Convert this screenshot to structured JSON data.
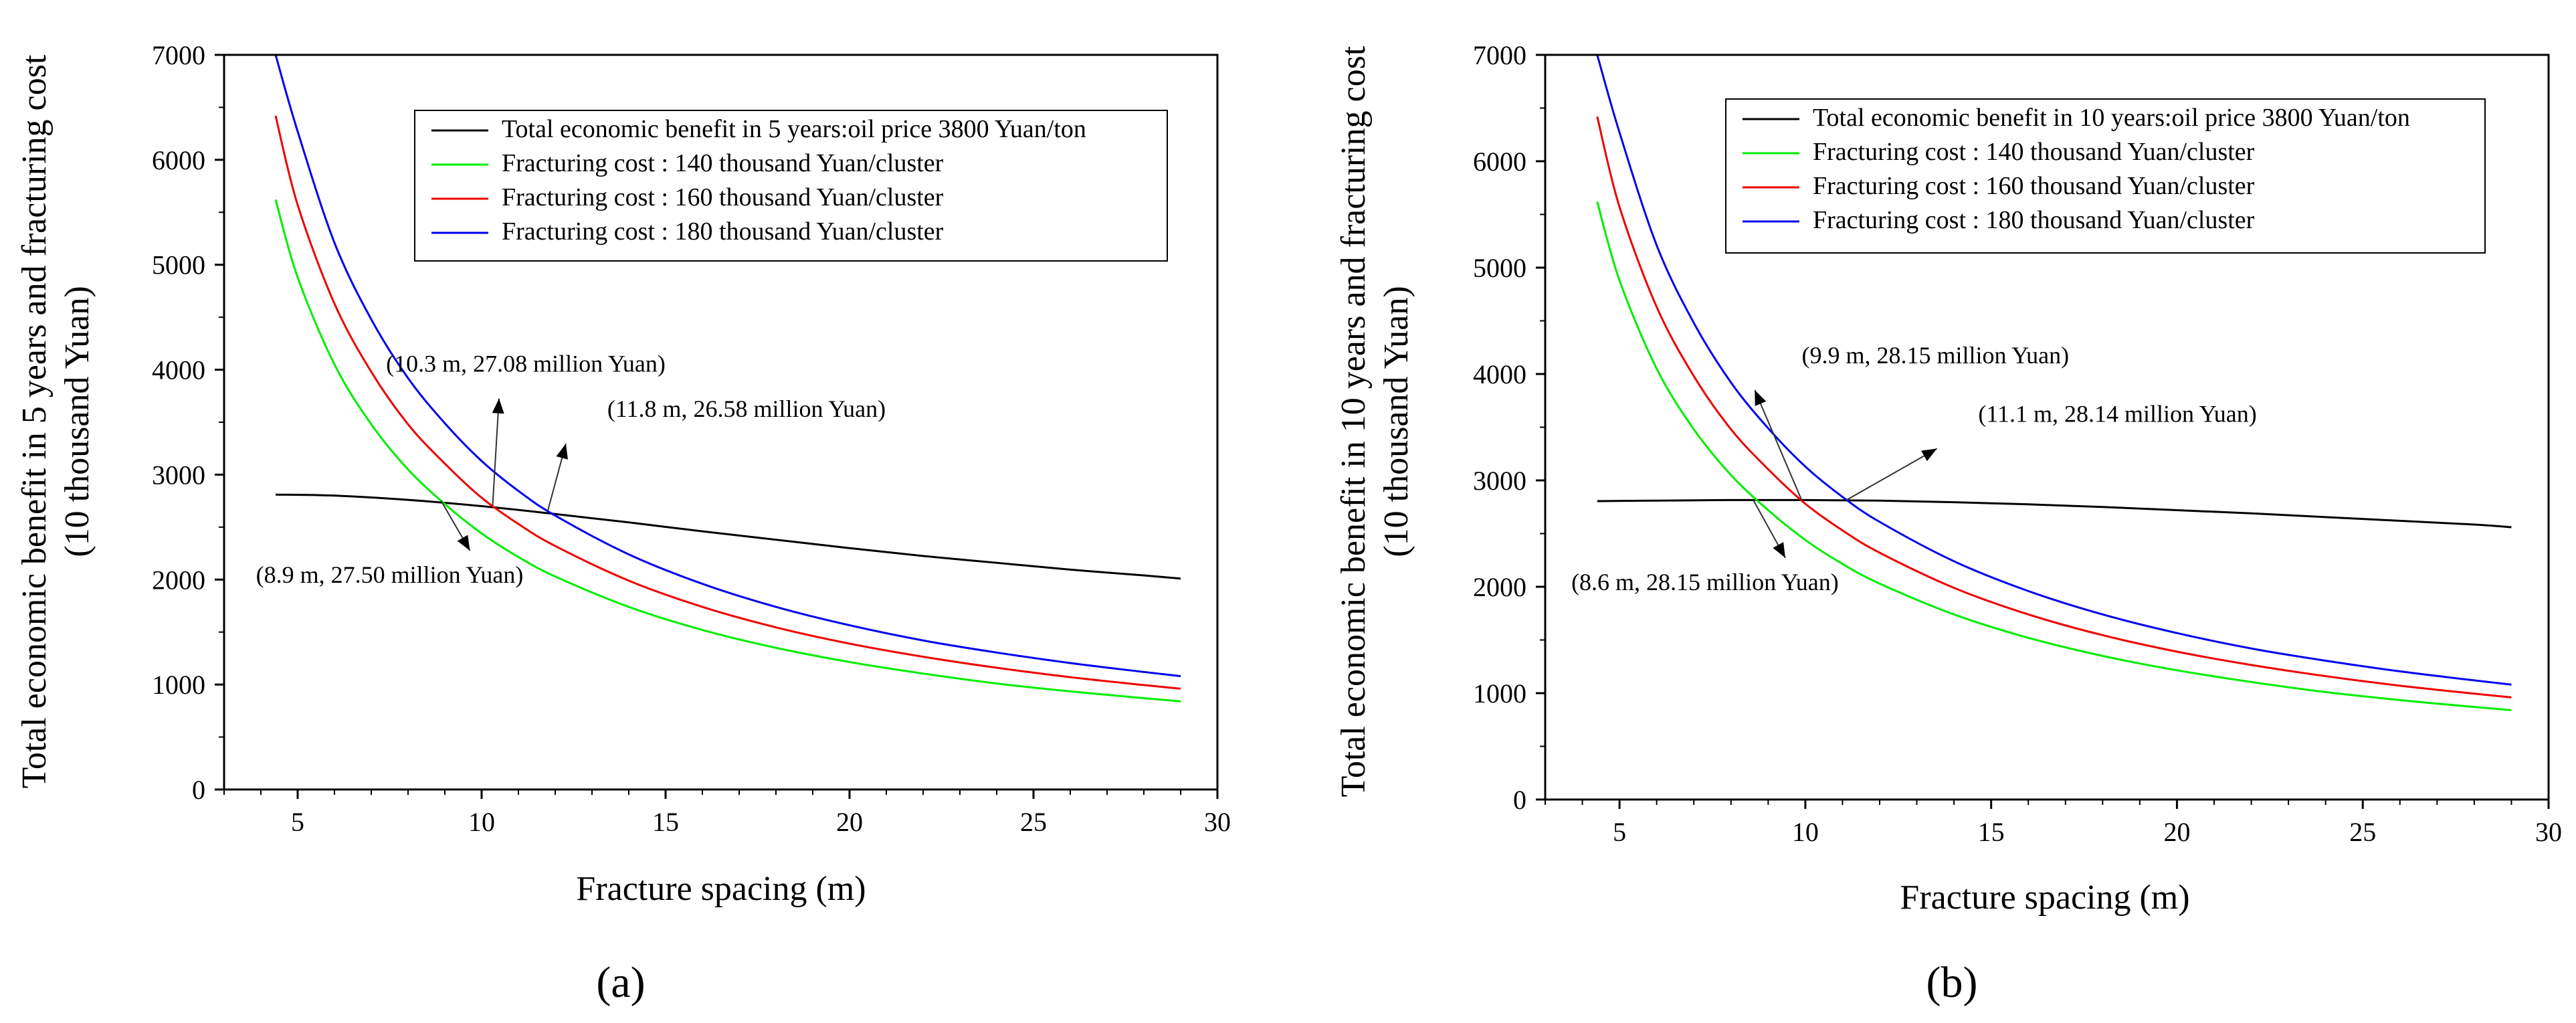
{
  "chart_data": [
    {
      "type": "line",
      "panel_label": "(a)",
      "xlabel": "Fracture spacing (m)",
      "ylabel_line1": "Total economic benefit in 5 years and fracturing cost",
      "ylabel_line2": "(10 thousand Yuan)",
      "xlim": [
        3,
        30
      ],
      "ylim": [
        0,
        7000
      ],
      "xticks": [
        5,
        10,
        15,
        20,
        25,
        30
      ],
      "yticks": [
        0,
        1000,
        2000,
        3000,
        4000,
        5000,
        6000,
        7000
      ],
      "legend_position": "top-right",
      "series": [
        {
          "name": "Total economic benefit in 5 years:oil price 3800 Yuan/ton",
          "color": "#000000",
          "x": [
            4.4,
            6,
            8,
            10,
            12,
            14,
            16,
            18,
            20,
            22,
            24,
            26,
            28,
            29
          ],
          "y": [
            2810,
            2800,
            2760,
            2700,
            2625,
            2545,
            2460,
            2380,
            2300,
            2225,
            2160,
            2095,
            2040,
            2010
          ]
        },
        {
          "name": "Fracturing cost : 140 thousand Yuan/cluster",
          "color": "#00ee00",
          "x": [
            4.4,
            5,
            6,
            7,
            8,
            9,
            10,
            11,
            12,
            14,
            16,
            18,
            20,
            22,
            24,
            26,
            28,
            29
          ],
          "y": [
            5620,
            4880,
            4050,
            3480,
            3050,
            2720,
            2440,
            2215,
            2030,
            1740,
            1520,
            1350,
            1215,
            1105,
            1010,
            935,
            870,
            840
          ]
        },
        {
          "name": "Fracturing cost : 160 thousand Yuan/cluster",
          "color": "#ee0000",
          "x": [
            4.4,
            5,
            6,
            7,
            8,
            9,
            10,
            11,
            12,
            14,
            16,
            18,
            20,
            22,
            24,
            26,
            28,
            29
          ],
          "y": [
            6420,
            5570,
            4630,
            3980,
            3480,
            3105,
            2780,
            2530,
            2320,
            1990,
            1740,
            1545,
            1390,
            1265,
            1160,
            1070,
            995,
            960
          ]
        },
        {
          "name": "Fracturing cost : 180 thousand Yuan/cluster",
          "color": "#0000ee",
          "x": [
            4.4,
            5,
            6,
            7,
            8,
            9,
            10,
            11,
            12,
            14,
            16,
            18,
            20,
            22,
            24,
            26,
            28,
            29
          ],
          "y": [
            7000,
            6270,
            5210,
            4480,
            3920,
            3490,
            3130,
            2845,
            2610,
            2240,
            1960,
            1740,
            1565,
            1420,
            1305,
            1205,
            1120,
            1080
          ]
        }
      ],
      "annotations": [
        {
          "text": "(10.3 m, 27.08 million Yuan)",
          "x": 10.3,
          "y": 2708,
          "label_x": 11.2,
          "label_y": 3980,
          "align": "middle"
        },
        {
          "text": "(11.8 m, 26.58 million Yuan)",
          "x": 11.8,
          "y": 2658,
          "label_x": 17.2,
          "label_y": 3550,
          "align": "middle"
        },
        {
          "text": "(8.9 m, 27.50 million Yuan)",
          "x": 8.9,
          "y": 2750,
          "label_x": 7.5,
          "label_y": 1970,
          "align": "middle"
        }
      ]
    },
    {
      "type": "line",
      "panel_label": "(b)",
      "xlabel": "Fracture spacing (m)",
      "ylabel_line1": "Total economic benefit in 10 years and fracturing cost",
      "ylabel_line2": "(10 thousand Yuan)",
      "xlim": [
        3,
        30
      ],
      "ylim": [
        0,
        7000
      ],
      "xticks": [
        5,
        10,
        15,
        20,
        25,
        30
      ],
      "yticks": [
        0,
        1000,
        2000,
        3000,
        4000,
        5000,
        6000,
        7000
      ],
      "legend_position": "top-right",
      "series": [
        {
          "name": "Total economic benefit in 10 years:oil price 3800 Yuan/ton",
          "color": "#000000",
          "x": [
            4.4,
            6,
            8,
            10,
            12,
            14,
            16,
            18,
            20,
            22,
            24,
            26,
            28,
            29
          ],
          "y": [
            2805,
            2810,
            2815,
            2815,
            2810,
            2795,
            2775,
            2750,
            2720,
            2690,
            2655,
            2620,
            2585,
            2560
          ]
        },
        {
          "name": "Fracturing cost : 140 thousand Yuan/cluster",
          "color": "#00ee00",
          "x": [
            4.4,
            5,
            6,
            7,
            8,
            9,
            10,
            11,
            12,
            14,
            16,
            18,
            20,
            22,
            24,
            26,
            28,
            29
          ],
          "y": [
            5620,
            4880,
            4050,
            3480,
            3050,
            2720,
            2440,
            2215,
            2030,
            1740,
            1520,
            1350,
            1215,
            1105,
            1010,
            935,
            870,
            840
          ]
        },
        {
          "name": "Fracturing cost : 160 thousand Yuan/cluster",
          "color": "#ee0000",
          "x": [
            4.4,
            5,
            6,
            7,
            8,
            9,
            10,
            11,
            12,
            14,
            16,
            18,
            20,
            22,
            24,
            26,
            28,
            29
          ],
          "y": [
            6420,
            5570,
            4630,
            3980,
            3480,
            3105,
            2780,
            2530,
            2320,
            1990,
            1740,
            1545,
            1390,
            1265,
            1160,
            1070,
            995,
            960
          ]
        },
        {
          "name": "Fracturing cost : 180 thousand Yuan/cluster",
          "color": "#0000ee",
          "x": [
            4.4,
            5,
            6,
            7,
            8,
            9,
            10,
            11,
            12,
            14,
            16,
            18,
            20,
            22,
            24,
            26,
            28,
            29
          ],
          "y": [
            7000,
            6270,
            5210,
            4480,
            3920,
            3490,
            3130,
            2845,
            2610,
            2240,
            1960,
            1740,
            1565,
            1420,
            1305,
            1205,
            1120,
            1080
          ]
        }
      ],
      "annotations": [
        {
          "text": "(9.9 m, 28.15 million Yuan)",
          "x": 9.9,
          "y": 2815,
          "label_x": 13.5,
          "label_y": 4100,
          "align": "middle"
        },
        {
          "text": "(11.1 m, 28.14 million Yuan)",
          "x": 11.1,
          "y": 2814,
          "label_x": 18.4,
          "label_y": 3550,
          "align": "middle"
        },
        {
          "text": "(8.6 m, 28.15 million Yuan)",
          "x": 8.6,
          "y": 2815,
          "label_x": 7.3,
          "label_y": 1970,
          "align": "middle"
        }
      ]
    }
  ]
}
